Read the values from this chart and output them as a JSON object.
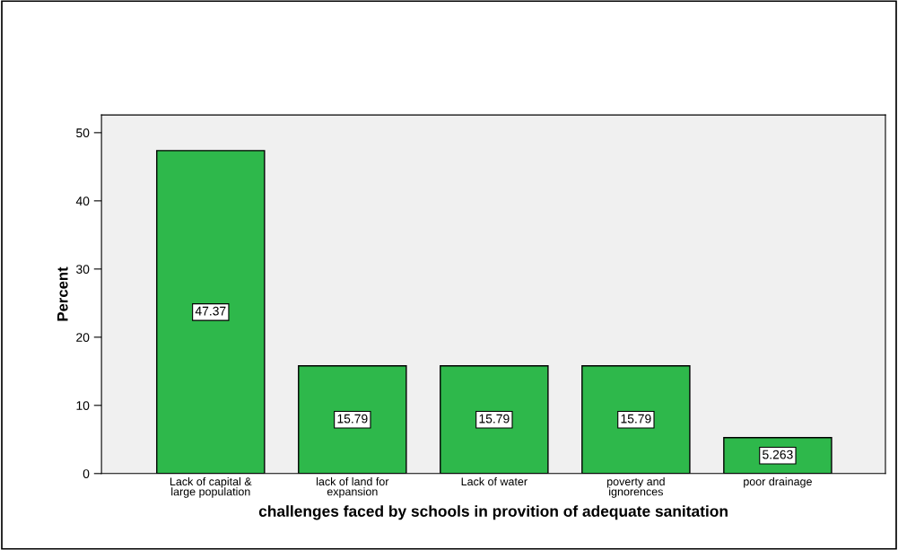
{
  "chart_data": {
    "type": "bar",
    "categories": [
      "Lack of capital &\nlarge population",
      "lack of land for\nexpansion",
      "Lack of water",
      "poverty and\nignorences",
      "poor drainage"
    ],
    "values": [
      47.37,
      15.79,
      15.79,
      15.79,
      5.263
    ],
    "color": "#2eb84b",
    "ylim": [
      0,
      52.6
    ],
    "yticks": [
      0,
      10,
      20,
      30,
      40,
      50
    ],
    "ylabel": "Percent",
    "xlabel": "challenges faced by schools in provition of adequate sanitation",
    "data_labels": true,
    "grid": false,
    "legend": false
  }
}
